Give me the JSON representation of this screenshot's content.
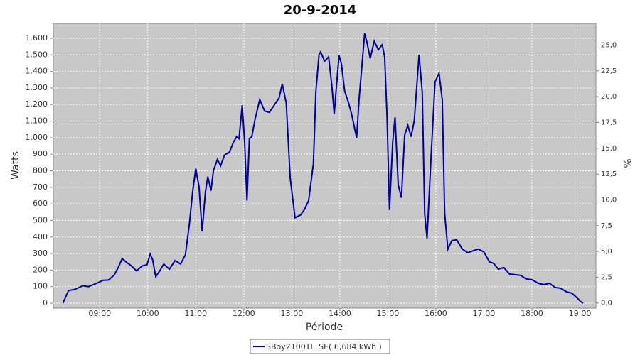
{
  "chart_data": {
    "type": "line",
    "title": "20-9-2014",
    "x_label": "Période",
    "y_label": "Watts",
    "y2_label": "%",
    "x": [
      "08:14",
      "08:21",
      "08:28",
      "08:39",
      "08:46",
      "08:56",
      "09:04",
      "09:11",
      "09:18",
      "09:23",
      "09:28",
      "09:34",
      "09:39",
      "09:46",
      "09:53",
      "09:59",
      "10:03",
      "10:06",
      "10:10",
      "10:15",
      "10:20",
      "10:27",
      "10:34",
      "10:41",
      "10:47",
      "10:52",
      "10:56",
      "11:00",
      "11:04",
      "11:08",
      "11:12",
      "11:15",
      "11:19",
      "11:22",
      "11:27",
      "11:31",
      "11:36",
      "11:42",
      "11:47",
      "11:51",
      "11:54",
      "11:58",
      "12:01",
      "12:04",
      "12:07",
      "12:10",
      "12:14",
      "12:20",
      "12:26",
      "12:32",
      "12:39",
      "12:44",
      "12:48",
      "12:53",
      "12:58",
      "13:04",
      "13:11",
      "13:16",
      "13:21",
      "13:27",
      "13:30",
      "13:34",
      "13:36",
      "13:41",
      "13:46",
      "13:50",
      "13:53",
      "13:56",
      "13:59",
      "14:02",
      "14:06",
      "14:11",
      "14:15",
      "14:21",
      "14:24",
      "14:31",
      "14:34",
      "14:38",
      "14:43",
      "14:48",
      "14:53",
      "14:56",
      "14:59",
      "15:02",
      "15:06",
      "15:09",
      "15:13",
      "15:17",
      "15:21",
      "15:25",
      "15:29",
      "15:33",
      "15:39",
      "15:43",
      "15:46",
      "15:49",
      "15:54",
      "15:59",
      "16:04",
      "16:08",
      "16:11",
      "16:15",
      "16:20",
      "16:26",
      "16:33",
      "16:40",
      "16:47",
      "16:53",
      "17:00",
      "17:07",
      "17:12",
      "17:18",
      "17:25",
      "17:32",
      "17:39",
      "17:46",
      "17:53",
      "18:00",
      "18:08",
      "18:15",
      "18:22",
      "18:29",
      "18:36",
      "18:43",
      "18:50",
      "18:56",
      "19:01",
      "19:04"
    ],
    "series": [
      {
        "name": "SBoy2100TL_SE( 6,684 kWh )",
        "color": "#0000a0",
        "values": [
          0,
          77,
          82,
          105,
          100,
          120,
          138,
          140,
          170,
          215,
          270,
          245,
          228,
          195,
          225,
          232,
          297,
          265,
          160,
          195,
          237,
          205,
          258,
          237,
          292,
          477,
          670,
          813,
          705,
          434,
          670,
          765,
          680,
          800,
          868,
          830,
          895,
          912,
          972,
          1006,
          994,
          1196,
          972,
          620,
          994,
          1006,
          1110,
          1230,
          1161,
          1153,
          1204,
          1239,
          1325,
          1209,
          757,
          516,
          533,
          568,
          620,
          843,
          1273,
          1501,
          1518,
          1462,
          1488,
          1316,
          1144,
          1325,
          1497,
          1445,
          1282,
          1209,
          1135,
          998,
          1230,
          1630,
          1574,
          1480,
          1583,
          1531,
          1561,
          1488,
          1123,
          563,
          972,
          1123,
          714,
          637,
          1015,
          1075,
          1006,
          1101,
          1501,
          1273,
          542,
          391,
          886,
          1338,
          1389,
          1230,
          542,
          327,
          378,
          383,
          327,
          305,
          318,
          327,
          310,
          249,
          241,
          206,
          215,
          176,
          172,
          168,
          146,
          142,
          120,
          112,
          120,
          95,
          90,
          69,
          60,
          34,
          9,
          0
        ]
      }
    ],
    "xlim": [
      "08:02",
      "19:20"
    ],
    "xticks": [
      "09:00",
      "10:00",
      "11:00",
      "12:00",
      "13:00",
      "14:00",
      "15:00",
      "16:00",
      "17:00",
      "18:00",
      "19:00"
    ],
    "ylim": [
      -30,
      1690
    ],
    "yticks": [
      0,
      100,
      200,
      300,
      400,
      500,
      600,
      700,
      800,
      900,
      {
        "value": 1000,
        "label": "1.000"
      },
      {
        "value": 1100,
        "label": "1.100"
      },
      {
        "value": 1200,
        "label": "1.200"
      },
      {
        "value": 1300,
        "label": "1.300"
      },
      {
        "value": 1400,
        "label": "1.400"
      },
      {
        "value": 1500,
        "label": "1.500"
      },
      {
        "value": 1600,
        "label": "1.600"
      }
    ],
    "y2lim": [
      -0.5,
      27.1
    ],
    "y2ticks": [
      {
        "value": 0,
        "label": "0,0"
      },
      {
        "value": 2.5,
        "label": "2,5"
      },
      {
        "value": 5,
        "label": "5,0"
      },
      {
        "value": 7.5,
        "label": "7,5"
      },
      {
        "value": 10,
        "label": "10,0"
      },
      {
        "value": 12.5,
        "label": "12,5"
      },
      {
        "value": 15,
        "label": "15,0"
      },
      {
        "value": 17.5,
        "label": "17,5"
      },
      {
        "value": 20,
        "label": "20,0"
      },
      {
        "value": 22.5,
        "label": "22,5"
      },
      {
        "value": 25,
        "label": "25,0"
      }
    ],
    "grid": true,
    "legend": "bottom"
  }
}
